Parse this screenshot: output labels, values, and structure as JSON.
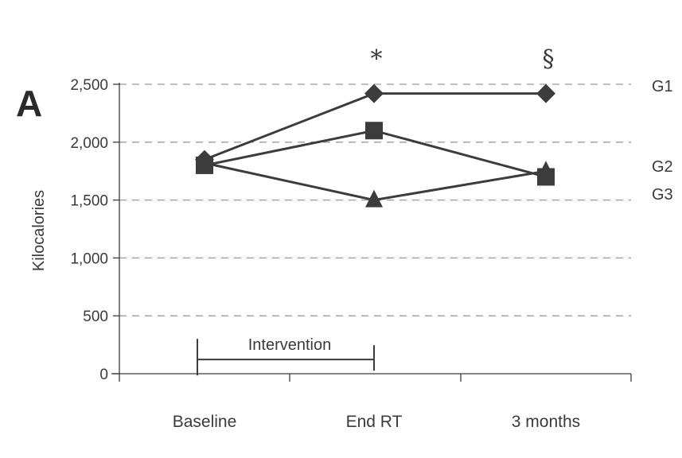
{
  "chart_data": {
    "type": "line",
    "panel_label": "A",
    "ylabel": "Kilocalories",
    "xlabel": "",
    "categories": [
      "Baseline",
      "End RT",
      "3 months"
    ],
    "ylim": [
      0,
      2500
    ],
    "yticks": [
      0,
      500,
      1000,
      1500,
      2000,
      2500
    ],
    "ytick_labels": [
      "0",
      "500",
      "1,000",
      "1,500",
      "2,000",
      "2,500"
    ],
    "grid": "horizontal dashed",
    "series": [
      {
        "name": "G1",
        "marker": "diamond",
        "values": [
          1850,
          2420,
          2420
        ]
      },
      {
        "name": "G2",
        "marker": "square",
        "values": [
          1800,
          2100,
          1700
        ]
      },
      {
        "name": "G3",
        "marker": "triangle",
        "values": [
          1820,
          1500,
          1750
        ]
      }
    ],
    "annotations": [
      {
        "text": "*",
        "category": "End RT"
      },
      {
        "text": "§",
        "category": "3 months"
      }
    ],
    "bracket": {
      "label": "Intervention",
      "from": "Baseline",
      "to": "End RT",
      "y": 150
    }
  },
  "colors": {
    "line": "#3c3c3c",
    "grid": "#9a9a9a",
    "text": "#3a3a3a"
  }
}
